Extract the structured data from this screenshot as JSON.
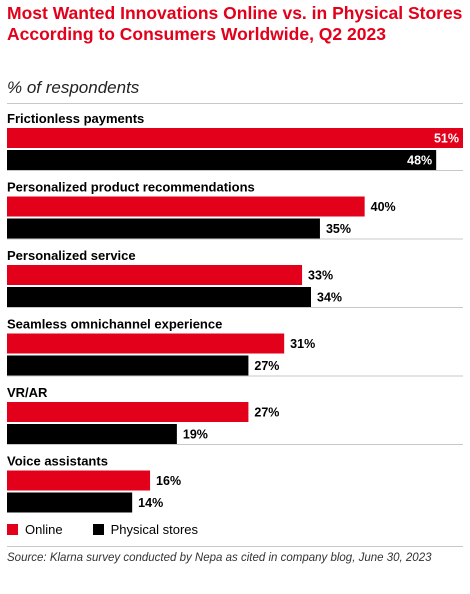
{
  "title": "Most Wanted Innovations Online vs. in Physical Stores According to Consumers Worldwide, Q2 2023",
  "subtitle": "% of respondents",
  "source": "Source: Klarna survey conducted by Nepa as cited in company blog, June 30, 2023",
  "colors": {
    "online": "#e2001a",
    "physical": "#000000"
  },
  "chart_data": {
    "type": "bar",
    "orientation": "horizontal",
    "categories": [
      "Frictionless payments",
      "Personalized product recommendations",
      "Personalized service",
      "Seamless omnichannel experience",
      "VR/AR",
      "Voice assistants"
    ],
    "series": [
      {
        "name": "Online",
        "values": [
          51,
          40,
          33,
          31,
          27,
          16
        ],
        "labels": [
          "51%",
          "40%",
          "33%",
          "31%",
          "27%",
          "16%"
        ]
      },
      {
        "name": "Physical stores",
        "values": [
          48,
          35,
          34,
          27,
          19,
          14
        ],
        "labels": [
          "48%",
          "35%",
          "34%",
          "27%",
          "19%",
          "14%"
        ]
      }
    ],
    "xlim": [
      0,
      51
    ],
    "grid": false,
    "legend": "bottom-left"
  }
}
